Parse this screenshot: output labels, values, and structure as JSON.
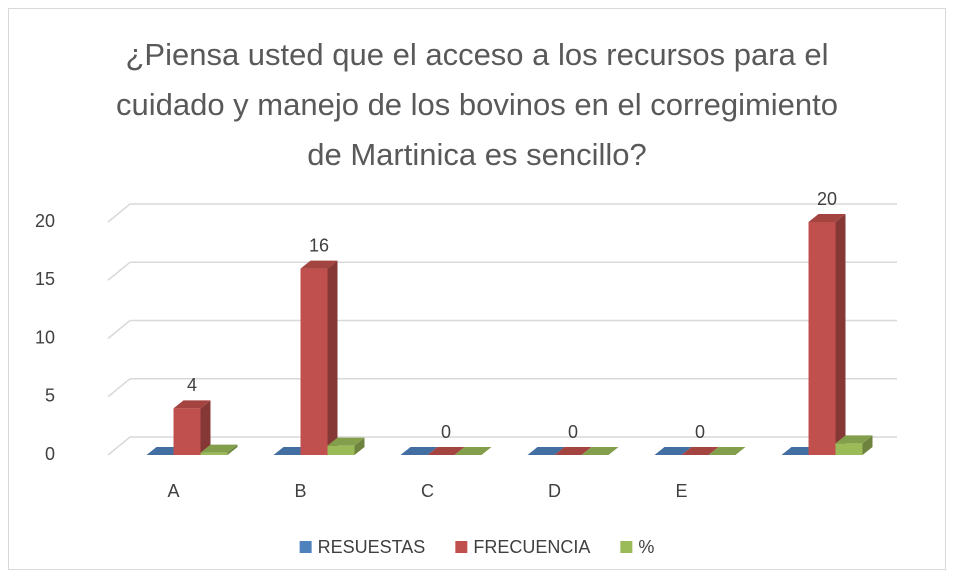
{
  "chart_data": {
    "type": "bar3d",
    "title": "¿Piensa usted que el acceso a los recursos para el cuidado y manejo de los bovinos en el corregimiento de Martinica es sencillo?",
    "categories": [
      "A",
      "B",
      "C",
      "D",
      "E",
      null
    ],
    "series": [
      {
        "name": "RESUESTAS",
        "color": "#4f81bd",
        "values": [
          0,
          0,
          0,
          0,
          0,
          0
        ]
      },
      {
        "name": "FRECUENCIA",
        "color": "#c0504d",
        "values": [
          4,
          16,
          0,
          0,
          0,
          20
        ],
        "data_labels": true
      },
      {
        "name": "%",
        "color": "#9bbb59",
        "values": [
          0.2,
          0.8,
          0,
          0,
          0,
          1
        ]
      }
    ],
    "ylim": [
      0,
      20
    ],
    "yticks": [
      0,
      5,
      10,
      15,
      20
    ],
    "grid": true,
    "legend": "bottom"
  }
}
